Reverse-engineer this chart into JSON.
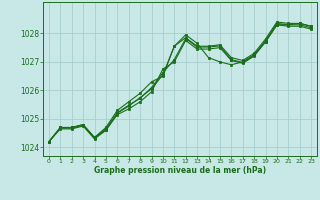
{
  "xlabel": "Graphe pression niveau de la mer (hPa)",
  "x_ticks": [
    0,
    1,
    2,
    3,
    4,
    5,
    6,
    7,
    8,
    9,
    10,
    11,
    12,
    13,
    14,
    15,
    16,
    17,
    18,
    19,
    20,
    21,
    22,
    23
  ],
  "xlim": [
    -0.5,
    23.5
  ],
  "ylim": [
    1023.7,
    1029.1
  ],
  "y_ticks": [
    1024,
    1025,
    1026,
    1027,
    1028
  ],
  "line_color": "#1a6e1a",
  "bg_color": "#c8e8e8",
  "grid_color": "#a8cece",
  "line1": [
    1024.2,
    1024.7,
    1024.7,
    1024.8,
    1024.35,
    1024.65,
    1025.2,
    1025.45,
    1025.75,
    1026.05,
    1026.55,
    1027.55,
    1027.85,
    1027.55,
    1027.55,
    1027.6,
    1027.15,
    1027.05,
    1027.3,
    1027.8,
    1028.4,
    1028.35,
    1028.35,
    1028.25
  ],
  "line2": [
    1024.2,
    1024.65,
    1024.65,
    1024.75,
    1024.3,
    1024.6,
    1025.15,
    1025.35,
    1025.6,
    1025.95,
    1026.75,
    1027.0,
    1027.75,
    1027.45,
    1027.45,
    1027.5,
    1027.05,
    1026.95,
    1027.2,
    1027.7,
    1028.3,
    1028.25,
    1028.25,
    1028.15
  ],
  "line3": [
    1024.2,
    1024.7,
    1024.7,
    1024.8,
    1024.35,
    1024.7,
    1025.3,
    1025.6,
    1025.9,
    1026.3,
    1026.5,
    1027.55,
    1027.95,
    1027.65,
    1027.15,
    1027.0,
    1026.9,
    1027.0,
    1027.25,
    1027.7,
    1028.3,
    1028.3,
    1028.35,
    1028.25
  ],
  "line4": [
    1024.2,
    1024.68,
    1024.68,
    1024.78,
    1024.32,
    1024.62,
    1025.22,
    1025.48,
    1025.72,
    1026.1,
    1026.62,
    1027.08,
    1027.82,
    1027.52,
    1027.52,
    1027.56,
    1027.08,
    1026.98,
    1027.24,
    1027.74,
    1028.35,
    1028.3,
    1028.3,
    1028.2
  ]
}
